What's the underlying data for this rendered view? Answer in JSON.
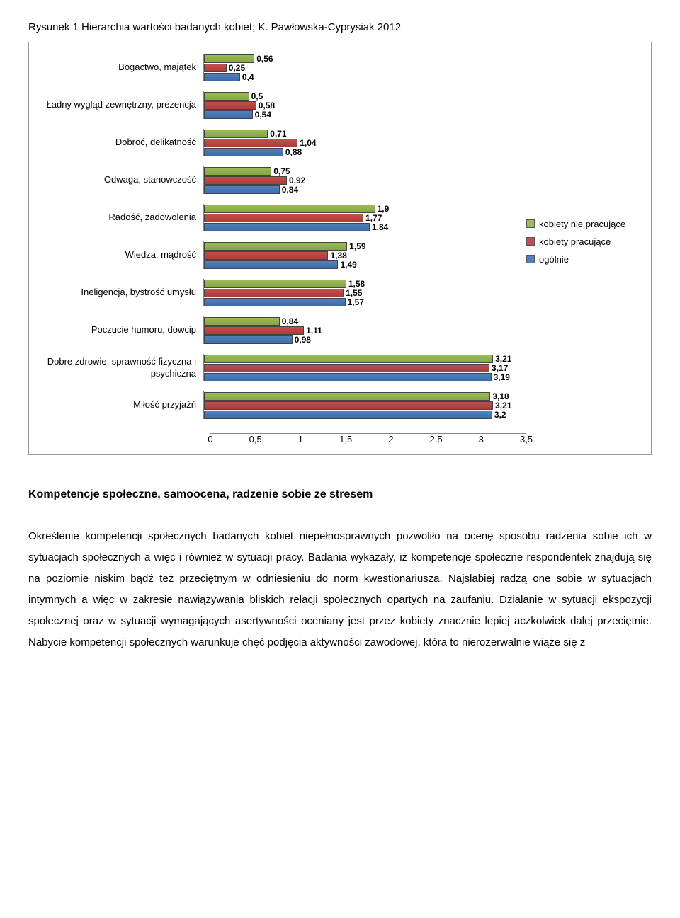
{
  "figure_caption": "Rysunek 1 Hierarchia wartości badanych kobiet; K. Pawłowska-Cyprysiak 2012",
  "chart": {
    "type": "bar",
    "xlim": [
      0,
      3.5
    ],
    "xtick_step": 0.5,
    "xtick_labels": [
      "0",
      "0,5",
      "1",
      "1,5",
      "2",
      "2,5",
      "3",
      "3,5"
    ],
    "legend": [
      {
        "label": "kobiety nie pracujące",
        "color": "#9bbb59"
      },
      {
        "label": "kobiety pracujące",
        "color": "#c0504d"
      },
      {
        "label": "ogólnie",
        "color": "#4f81bd"
      }
    ],
    "label_fontsize": 13,
    "value_fontsize": 12,
    "background_color": "#ffffff",
    "border_color": "#999999",
    "categories": [
      {
        "label": "Bogactwo, majątek",
        "vals": [
          0.56,
          0.25,
          0.4
        ],
        "disp": [
          "0,56",
          "0,25",
          "0,4"
        ]
      },
      {
        "label": "Ładny wygląd zewnętrzny, prezencja",
        "vals": [
          0.5,
          0.58,
          0.54
        ],
        "disp": [
          "0,5",
          "0,58",
          "0,54"
        ]
      },
      {
        "label": "Dobroć, delikatność",
        "vals": [
          0.71,
          1.04,
          0.88
        ],
        "disp": [
          "0,71",
          "1,04",
          "0,88"
        ]
      },
      {
        "label": "Odwaga, stanowczość",
        "vals": [
          0.75,
          0.92,
          0.84
        ],
        "disp": [
          "0,75",
          "0,92",
          "0,84"
        ]
      },
      {
        "label": "Radość, zadowolenia",
        "vals": [
          1.9,
          1.77,
          1.84
        ],
        "disp": [
          "1,9",
          "1,77",
          "1,84"
        ]
      },
      {
        "label": "Wiedza, mądrość",
        "vals": [
          1.59,
          1.38,
          1.49
        ],
        "disp": [
          "1,59",
          "1,38",
          "1,49"
        ]
      },
      {
        "label": "Ineligencja, bystrość umysłu",
        "vals": [
          1.58,
          1.55,
          1.57
        ],
        "disp": [
          "1,58",
          "1,55",
          "1,57"
        ]
      },
      {
        "label": "Poczucie humoru, dowcip",
        "vals": [
          0.84,
          1.11,
          0.98
        ],
        "disp": [
          "0,84",
          "1,11",
          "0,98"
        ]
      },
      {
        "label": "Dobre zdrowie, sprawność fizyczna i psychiczna",
        "vals": [
          3.21,
          3.17,
          3.19
        ],
        "disp": [
          "3,21",
          "3,17",
          "3,19"
        ]
      },
      {
        "label": "Miłość przyjaźń",
        "vals": [
          3.18,
          3.21,
          3.2
        ],
        "disp": [
          "3,18",
          "3,21",
          "3,2"
        ]
      }
    ]
  },
  "section_heading": "Kompetencje społeczne, samoocena, radzenie sobie ze stresem",
  "body_text": "Określenie kompetencji społecznych badanych kobiet niepełnosprawnych pozwoliło na ocenę sposobu radzenia sobie ich w sytuacjach społecznych a więc i również w sytuacji pracy. Badania wykazały, iż kompetencje społeczne respondentek znajdują się na poziomie niskim bądź też przeciętnym w odniesieniu do norm kwestionariusza. Najsłabiej radzą one sobie w sytuacjach intymnych a więc w zakresie nawiązywania bliskich relacji społecznych opartych na zaufaniu. Działanie w sytuacji ekspozycji społecznej oraz w sytuacji wymagających asertywności oceniany jest przez kobiety znacznie lepiej aczkolwiek dalej przeciętnie. Nabycie kompetencji społecznych warunkuje chęć podjęcia aktywności zawodowej, która to nierozerwalnie wiąże się z"
}
